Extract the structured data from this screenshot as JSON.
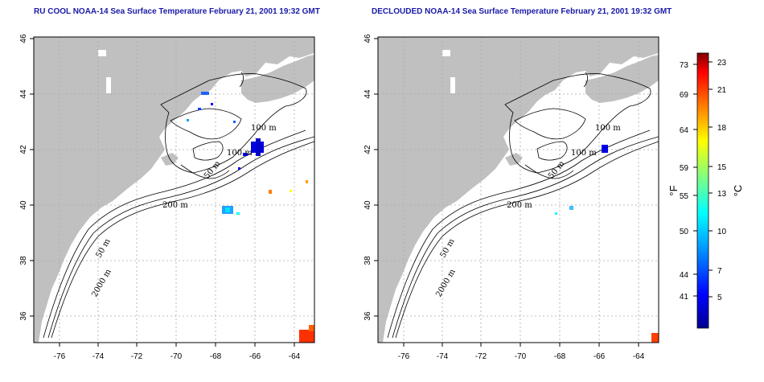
{
  "titles": {
    "left": "RU COOL NOAA-14 Sea Surface Temperature February 21, 2001 19:32 GMT",
    "right": "DECLOUDED NOAA-14 Sea Surface Temperature February 21, 2001 19:32 GMT"
  },
  "axes": {
    "lon_ticks": [
      "-76",
      "-74",
      "-72",
      "-70",
      "-68",
      "-66",
      "-64"
    ],
    "lat_ticks": [
      "46",
      "44",
      "42",
      "40",
      "38",
      "36"
    ]
  },
  "contours": {
    "left": [
      "100 m",
      "100 m",
      "50 m",
      "200 m",
      "50 m",
      "2000 m"
    ],
    "right": [
      "100 m",
      "100 m",
      "50 m",
      "200 m",
      "50 m",
      "2000 m"
    ]
  },
  "colorbar": {
    "fahrenheit_ticks": [
      "73",
      "69",
      "64",
      "59",
      "55",
      "50",
      "44",
      "41"
    ],
    "celsius_ticks": [
      "23",
      "21",
      "18",
      "15",
      "13",
      "10",
      "7",
      "5"
    ],
    "fahrenheit_unit": "°F",
    "celsius_unit": "°C"
  },
  "colors": {
    "land": "#c0c0c0",
    "title": "#1a1aa8",
    "grid": "#aaaaaa"
  }
}
